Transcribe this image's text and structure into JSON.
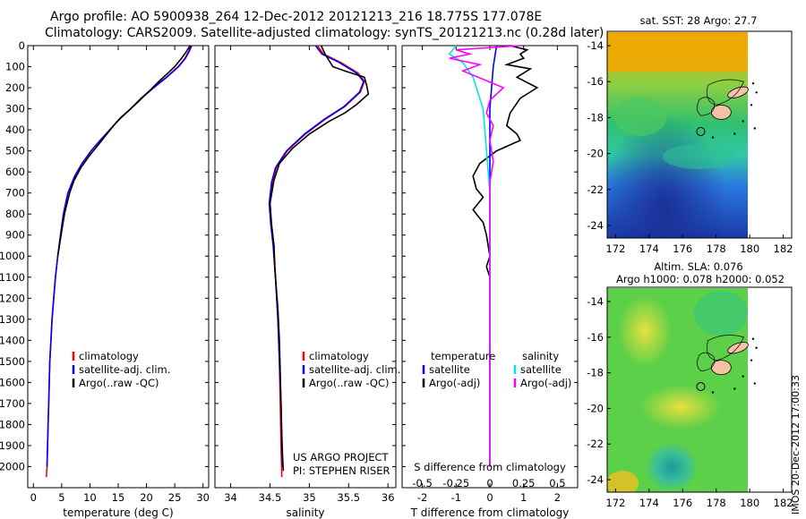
{
  "header": {
    "line1": "Argo profile: AO 5900938_264 12-Dec-2012 20121213_216 18.775S 177.078E",
    "line2": "Climatology: CARS2009. Satellite-adjusted climatology: synTS_20121213.nc (0.28d later)"
  },
  "credit": {
    "line1": "US ARGO PROJECT",
    "line2": "PI: STEPHEN RISER"
  },
  "stamp": "IMOS 20-Dec-2012 17:00:33",
  "colors": {
    "climatology": "#ff0000",
    "satellite": "#0000ff",
    "argo": "#000000",
    "sat_salinity": "#00e5e5",
    "argo_salinity": "#ff00ff",
    "land": "#f5c2a8"
  },
  "chart_data": [
    {
      "id": "temperature",
      "type": "line",
      "xlabel": "temperature (deg C)",
      "ylabel": "",
      "xlim": [
        -1,
        31
      ],
      "ylim": [
        2100,
        0
      ],
      "xticks": [
        0,
        5,
        10,
        15,
        20,
        25,
        30
      ],
      "yticks": [
        0,
        100,
        200,
        300,
        400,
        500,
        600,
        700,
        800,
        900,
        1000,
        1100,
        1200,
        1300,
        1400,
        1500,
        1600,
        1700,
        1800,
        1900,
        2000
      ],
      "legend": [
        "climatology",
        "satellite-adj. clim.",
        "Argo(..raw -QC)"
      ],
      "series": [
        {
          "name": "climatology",
          "color": "#ff0000",
          "points": [
            [
              27.8,
              0
            ],
            [
              27.5,
              25
            ],
            [
              26.8,
              60
            ],
            [
              25.6,
              100
            ],
            [
              23.5,
              150
            ],
            [
              21.2,
              200
            ],
            [
              19.0,
              250
            ],
            [
              17.2,
              300
            ],
            [
              15.2,
              350
            ],
            [
              13.5,
              400
            ],
            [
              11.8,
              450
            ],
            [
              10.2,
              500
            ],
            [
              8.6,
              560
            ],
            [
              7.3,
              620
            ],
            [
              6.1,
              700
            ],
            [
              5.3,
              800
            ],
            [
              4.8,
              900
            ],
            [
              4.3,
              1000
            ],
            [
              3.9,
              1100
            ],
            [
              3.6,
              1200
            ],
            [
              3.3,
              1300
            ],
            [
              3.1,
              1400
            ],
            [
              2.9,
              1500
            ],
            [
              2.8,
              1600
            ],
            [
              2.7,
              1700
            ],
            [
              2.6,
              1800
            ],
            [
              2.5,
              1900
            ],
            [
              2.4,
              2000
            ],
            [
              2.3,
              2050
            ]
          ]
        },
        {
          "name": "satellite-adj. clim.",
          "color": "#0000ff",
          "points": [
            [
              28.0,
              0
            ],
            [
              27.6,
              25
            ],
            [
              26.9,
              60
            ],
            [
              25.7,
              100
            ],
            [
              23.6,
              150
            ],
            [
              21.3,
              200
            ],
            [
              19.1,
              250
            ],
            [
              17.2,
              300
            ],
            [
              15.2,
              350
            ],
            [
              13.5,
              400
            ],
            [
              11.8,
              450
            ],
            [
              10.2,
              500
            ],
            [
              8.6,
              560
            ],
            [
              7.3,
              620
            ],
            [
              6.1,
              700
            ],
            [
              5.3,
              800
            ],
            [
              4.8,
              900
            ],
            [
              4.3,
              1000
            ],
            [
              3.9,
              1100
            ],
            [
              3.6,
              1200
            ],
            [
              3.3,
              1300
            ],
            [
              3.1,
              1400
            ],
            [
              2.9,
              1500
            ],
            [
              2.8,
              1600
            ],
            [
              2.7,
              1700
            ],
            [
              2.6,
              1800
            ],
            [
              2.5,
              1900
            ],
            [
              2.4,
              2000
            ]
          ]
        },
        {
          "name": "Argo(..raw -QC)",
          "color": "#000000",
          "points": [
            [
              27.7,
              0
            ],
            [
              27.0,
              30
            ],
            [
              26.2,
              60
            ],
            [
              25.0,
              100
            ],
            [
              23.8,
              130
            ],
            [
              22.2,
              170
            ],
            [
              20.3,
              220
            ],
            [
              18.4,
              270
            ],
            [
              16.8,
              310
            ],
            [
              15.5,
              340
            ],
            [
              14.5,
              370
            ],
            [
              13.0,
              420
            ],
            [
              11.5,
              470
            ],
            [
              10.0,
              520
            ],
            [
              8.4,
              580
            ],
            [
              7.2,
              640
            ],
            [
              6.4,
              700
            ],
            [
              5.5,
              800
            ],
            [
              4.9,
              900
            ],
            [
              4.3,
              1000
            ]
          ]
        }
      ]
    },
    {
      "id": "salinity",
      "type": "line",
      "xlabel": "salinity",
      "ylabel": "",
      "xlim": [
        33.8,
        36.1
      ],
      "ylim": [
        2100,
        0
      ],
      "xticks": [
        34,
        34.5,
        35,
        35.5,
        36
      ],
      "legend": [
        "climatology",
        "satellite-adj. clim.",
        "Argo(..raw -QC)"
      ],
      "series": [
        {
          "name": "climatology",
          "color": "#ff0000",
          "points": [
            [
              35.1,
              0
            ],
            [
              35.18,
              40
            ],
            [
              35.4,
              80
            ],
            [
              35.62,
              130
            ],
            [
              35.7,
              170
            ],
            [
              35.65,
              220
            ],
            [
              35.45,
              290
            ],
            [
              35.2,
              350
            ],
            [
              34.95,
              420
            ],
            [
              34.72,
              500
            ],
            [
              34.58,
              580
            ],
            [
              34.53,
              650
            ],
            [
              34.5,
              750
            ],
            [
              34.52,
              850
            ],
            [
              34.55,
              950
            ],
            [
              34.57,
              1100
            ],
            [
              34.6,
              1300
            ],
            [
              34.62,
              1500
            ],
            [
              34.63,
              1700
            ],
            [
              34.64,
              1900
            ],
            [
              34.65,
              2050
            ]
          ]
        },
        {
          "name": "satellite-adj. clim.",
          "color": "#0000ff",
          "points": [
            [
              35.08,
              0
            ],
            [
              35.16,
              40
            ],
            [
              35.38,
              80
            ],
            [
              35.6,
              130
            ],
            [
              35.69,
              170
            ],
            [
              35.64,
              220
            ],
            [
              35.44,
              290
            ],
            [
              35.19,
              350
            ],
            [
              34.94,
              420
            ],
            [
              34.71,
              500
            ],
            [
              34.57,
              580
            ],
            [
              34.52,
              650
            ],
            [
              34.49,
              750
            ],
            [
              34.51,
              850
            ],
            [
              34.54,
              950
            ],
            [
              34.57,
              1100
            ],
            [
              34.6,
              1300
            ],
            [
              34.62,
              1500
            ],
            [
              34.64,
              1700
            ],
            [
              34.65,
              1900
            ],
            [
              34.66,
              2000
            ]
          ]
        },
        {
          "name": "Argo(..raw -QC)",
          "color": "#000000",
          "points": [
            [
              35.15,
              0
            ],
            [
              35.2,
              40
            ],
            [
              35.25,
              70
            ],
            [
              35.3,
              100
            ],
            [
              35.45,
              120
            ],
            [
              35.7,
              150
            ],
            [
              35.73,
              190
            ],
            [
              35.75,
              230
            ],
            [
              35.6,
              280
            ],
            [
              35.45,
              320
            ],
            [
              35.25,
              360
            ],
            [
              35.0,
              420
            ],
            [
              34.78,
              490
            ],
            [
              34.62,
              560
            ],
            [
              34.55,
              640
            ],
            [
              34.5,
              750
            ],
            [
              34.52,
              850
            ],
            [
              34.55,
              950
            ],
            [
              34.56,
              1050
            ],
            [
              34.58,
              1150
            ],
            [
              34.6,
              1250
            ],
            [
              34.62,
              1400
            ],
            [
              34.63,
              1550
            ],
            [
              34.64,
              1700
            ],
            [
              34.65,
              1850
            ],
            [
              34.66,
              1950
            ],
            [
              34.67,
              2020
            ]
          ]
        }
      ]
    },
    {
      "id": "difference",
      "type": "line",
      "xlabel": "T difference from climatology",
      "xlabel2": "S difference from climatology",
      "xlim": [
        -2.6,
        2.6
      ],
      "ylim": [
        2100,
        0
      ],
      "xticks": [
        -2,
        -1,
        0,
        1,
        2
      ],
      "xticks_s": [
        -0.5,
        -0.25,
        0,
        0.25,
        0.5
      ],
      "legend_temperature": [
        "temperature",
        "satellite",
        "Argo(-adj)"
      ],
      "legend_salinity": [
        "salinity",
        "satellite",
        "Argo(-adj)"
      ],
      "series": [
        {
          "name": "temperature Argo(-adj)",
          "color": "#000000",
          "points": [
            [
              0.6,
              0
            ],
            [
              1.1,
              20
            ],
            [
              0.9,
              40
            ],
            [
              1.0,
              60
            ],
            [
              0.5,
              90
            ],
            [
              1.2,
              110
            ],
            [
              0.8,
              150
            ],
            [
              1.4,
              200
            ],
            [
              0.9,
              250
            ],
            [
              0.6,
              320
            ],
            [
              0.5,
              380
            ],
            [
              0.8,
              420
            ],
            [
              0.9,
              450
            ],
            [
              0.2,
              500
            ],
            [
              -0.3,
              560
            ],
            [
              -0.5,
              620
            ],
            [
              -0.4,
              680
            ],
            [
              -0.2,
              720
            ],
            [
              -0.5,
              780
            ],
            [
              -0.2,
              840
            ],
            [
              -0.1,
              900
            ],
            [
              0.0,
              1000
            ],
            [
              -0.1,
              1050
            ],
            [
              0.0,
              1100
            ],
            [
              0.0,
              1300
            ],
            [
              0.0,
              2000
            ]
          ]
        },
        {
          "name": "temperature satellite",
          "color": "#0000ff",
          "points": [
            [
              0.2,
              0
            ],
            [
              0.1,
              100
            ],
            [
              0.0,
              300
            ],
            [
              0.0,
              2000
            ]
          ]
        },
        {
          "name": "salinity satellite",
          "color": "#00e5e5",
          "points": [
            [
              -1.0,
              0
            ],
            [
              -1.2,
              40
            ],
            [
              -0.8,
              80
            ],
            [
              -0.5,
              150
            ],
            [
              -0.2,
              300
            ],
            [
              -0.1,
              500
            ],
            [
              0.0,
              700
            ],
            [
              0.0,
              2000
            ]
          ]
        },
        {
          "name": "salinity Argo(-adj)",
          "color": "#ff00ff",
          "points": [
            [
              0.9,
              0
            ],
            [
              -1.0,
              20
            ],
            [
              -0.6,
              40
            ],
            [
              -1.2,
              60
            ],
            [
              -0.3,
              90
            ],
            [
              -0.8,
              120
            ],
            [
              -0.2,
              160
            ],
            [
              0.4,
              200
            ],
            [
              0.0,
              260
            ],
            [
              -0.1,
              320
            ],
            [
              0.1,
              380
            ],
            [
              0.0,
              450
            ],
            [
              0.1,
              550
            ],
            [
              0.0,
              650
            ],
            [
              0.0,
              2000
            ]
          ]
        }
      ]
    },
    {
      "id": "sst_map",
      "type": "heatmap",
      "title": "sat. SST: 28 Argo: 27.7",
      "xlim": [
        171.5,
        182.5
      ],
      "ylim": [
        -24.7,
        -13.2
      ],
      "xticks": [
        172,
        174,
        176,
        178,
        180,
        182
      ],
      "yticks": [
        -14,
        -16,
        -18,
        -20,
        -22,
        -24
      ],
      "data_extent_lon": [
        171.5,
        180
      ],
      "argo_position": [
        177.078,
        -18.775
      ]
    },
    {
      "id": "sla_map",
      "type": "heatmap",
      "title": "Altim. SLA: 0.076",
      "subtitle": "Argo h1000: 0.078 h2000: 0.052",
      "xlim": [
        171.5,
        182.5
      ],
      "ylim": [
        -24.7,
        -13.2
      ],
      "xticks": [
        172,
        174,
        176,
        178,
        180,
        182
      ],
      "yticks": [
        -14,
        -16,
        -18,
        -20,
        -22,
        -24
      ],
      "data_extent_lon": [
        171.5,
        180
      ],
      "argo_position": [
        177.078,
        -18.775
      ]
    }
  ]
}
